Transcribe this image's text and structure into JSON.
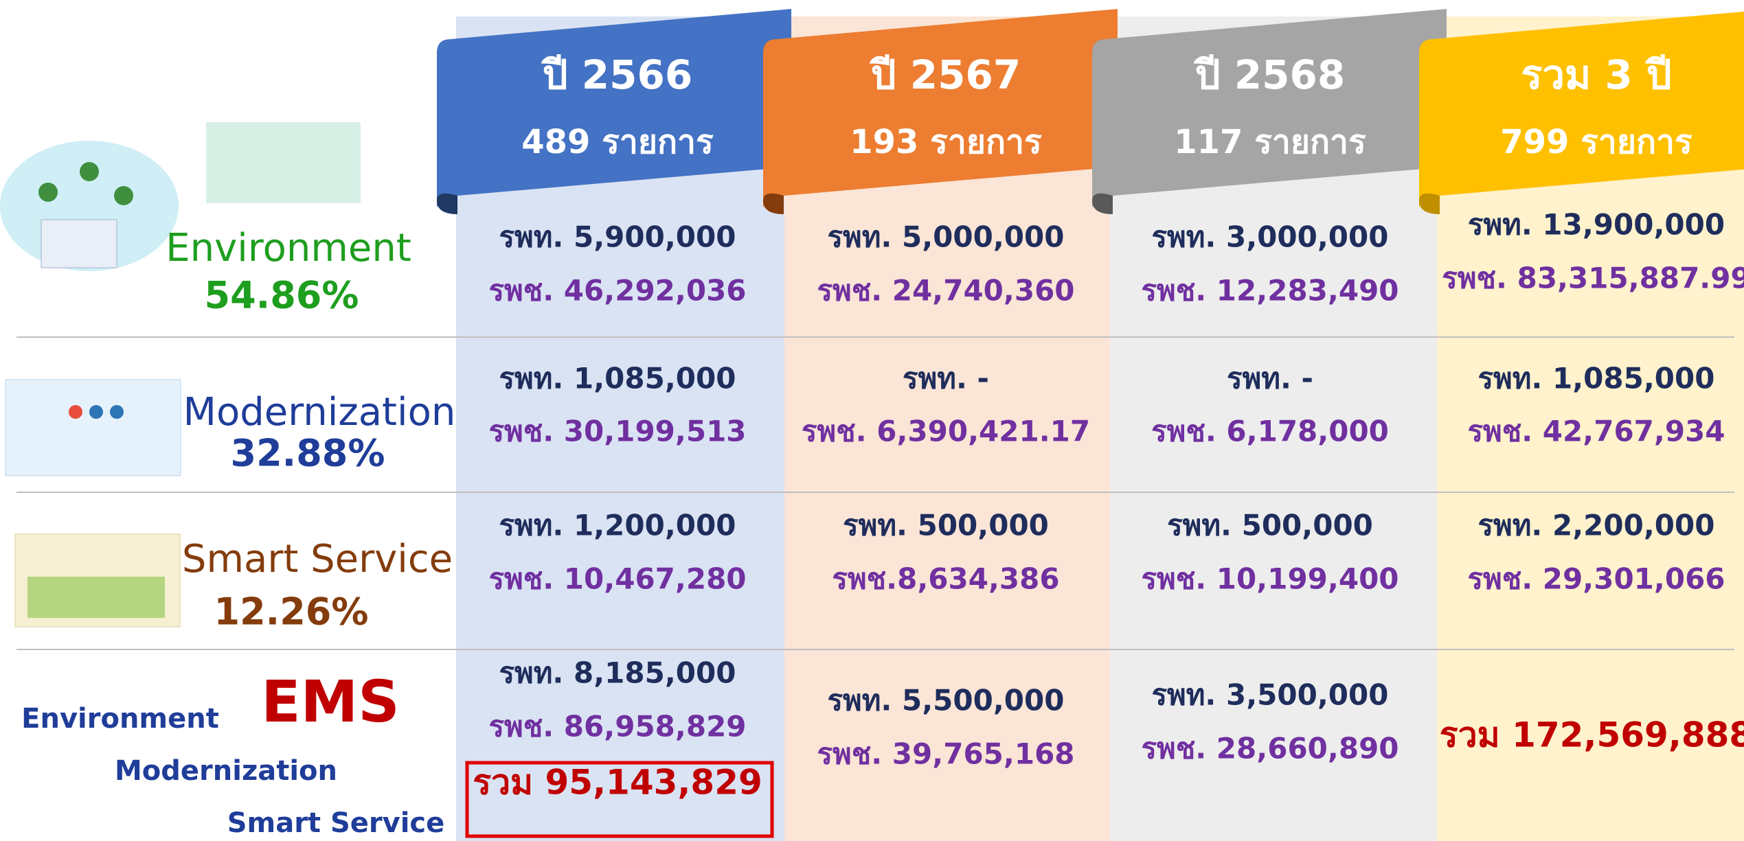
{
  "columns": [
    {
      "title": "ปี 2566",
      "count": "489 รายการ"
    },
    {
      "title": "ปี 2567",
      "count": "193 รายการ"
    },
    {
      "title": "ปี 2568",
      "count": "117 รายการ"
    },
    {
      "title": "รวม 3 ปี",
      "count": "799 รายการ"
    }
  ],
  "rows": [
    {
      "name": "Environment",
      "percent": "54.86%",
      "cells": [
        [
          "รพท. 5,900,000",
          "รพช. 46,292,036"
        ],
        [
          "รพท. 5,000,000",
          "รพช. 24,740,360"
        ],
        [
          "รพท. 3,000,000",
          "รพช. 12,283,490"
        ],
        [
          "รพท. 13,900,000",
          "รพช. 83,315,887.99"
        ]
      ]
    },
    {
      "name": "Modernization",
      "percent": "32.88%",
      "cells": [
        [
          "รพท. 1,085,000",
          "รพช. 30,199,513"
        ],
        [
          "รพท. -",
          "รพช. 6,390,421.17"
        ],
        [
          "รพท. -",
          "รพช. 6,178,000"
        ],
        [
          "รพท. 1,085,000",
          "รพช. 42,767,934"
        ]
      ]
    },
    {
      "name": "Smart Service",
      "percent": "12.26%",
      "cells": [
        [
          "รพท. 1,200,000",
          "รพช. 10,467,280"
        ],
        [
          "รพท. 500,000",
          "รพช.8,634,386"
        ],
        [
          "รพท. 500,000",
          "รพช. 10,199,400"
        ],
        [
          "รพท. 2,200,000",
          "รพช. 29,301,066"
        ]
      ]
    }
  ],
  "summary": {
    "title": "EMS",
    "labels": [
      "Environment",
      "Modernization",
      "Smart Service"
    ],
    "cells": [
      [
        "รพท. 8,185,000",
        "รพช. 86,958,829",
        "รวม 95,143,829"
      ],
      [
        "รพท. 5,500,000",
        "รพช. 39,765,168"
      ],
      [
        "รพท. 3,500,000",
        "รพช. 28,660,890"
      ],
      [
        "รวม 172,569,888"
      ]
    ]
  }
}
